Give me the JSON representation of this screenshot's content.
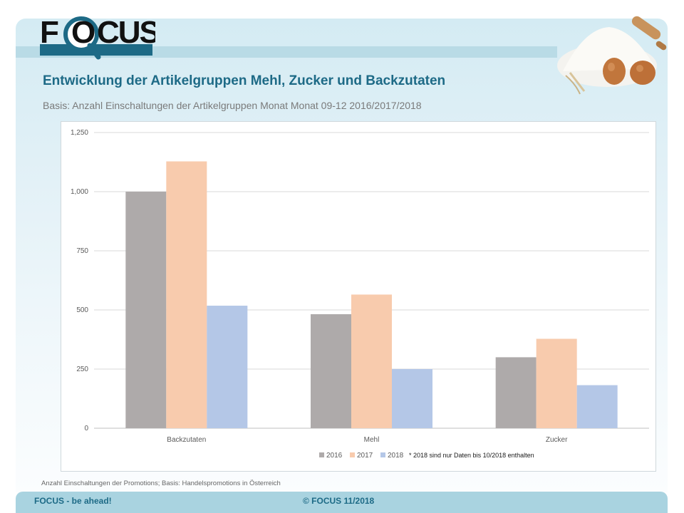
{
  "header": {
    "logo_text": "FOCUS",
    "title": "Entwicklung der Artikelgruppen Mehl, Zucker und Backzutaten",
    "subtitle": "Basis: Anzahl Einschaltungen  der Artikelgruppen Monat Monat 09-12 2016/2017/2018"
  },
  "chart_data": {
    "type": "bar",
    "title": "",
    "xlabel": "",
    "ylabel": "",
    "categories": [
      "Backzutaten",
      "Mehl",
      "Zucker"
    ],
    "series": [
      {
        "name": "2016",
        "color": "#aeaaaa",
        "values": [
          1000,
          482,
          300
        ]
      },
      {
        "name": "2017",
        "color": "#f8cbad",
        "values": [
          1128,
          565,
          378
        ]
      },
      {
        "name": "2018",
        "color": "#b4c7e7",
        "values": [
          518,
          250,
          182
        ]
      }
    ],
    "ylim": [
      0,
      1250
    ],
    "yticks": [
      0,
      250,
      500,
      750,
      1000,
      1250
    ],
    "ytick_labels": [
      "0",
      "250",
      "500",
      "750",
      "1,000",
      "1,250"
    ],
    "legend_position": "bottom",
    "legend_note": "* 2018 sind nur Daten bis 10/2018 enthalten",
    "grid": true
  },
  "source_note": "Anzahl Einschaltungen der Promotions;  Basis: Handelspromotions in Österreich",
  "footer": {
    "left": "FOCUS  - be ahead!",
    "center": "© FOCUS  11/2018"
  }
}
